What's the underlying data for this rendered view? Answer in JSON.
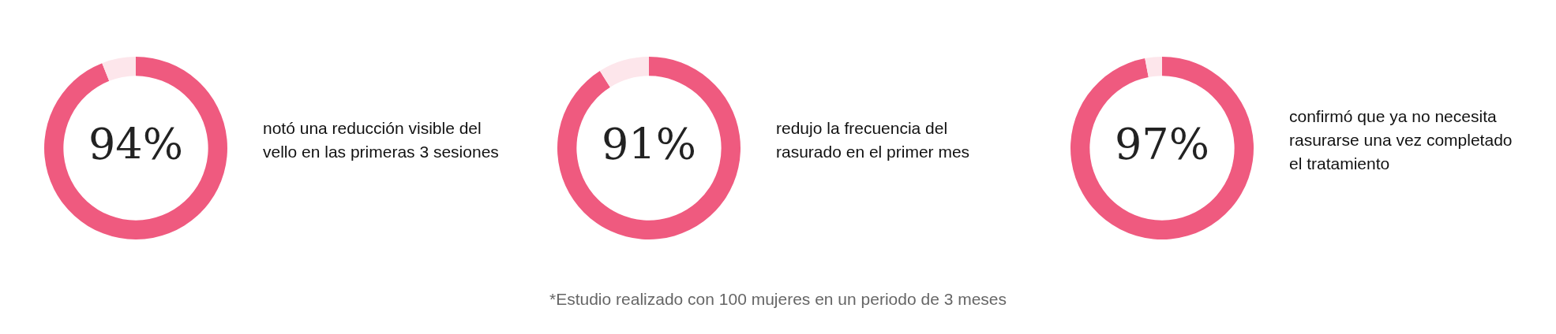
{
  "chart_data": [
    {
      "type": "donut",
      "categories": [
        null,
        null
      ],
      "values": [
        94,
        6
      ],
      "colors": [
        "#ef5a7f",
        "#fde6eb"
      ],
      "value_labels": [
        "94%",
        null
      ],
      "annotations": [
        "notó una reducción visible del vello en las primeras 3 sesiones"
      ]
    },
    {
      "type": "donut",
      "categories": [
        null,
        null
      ],
      "values": [
        91,
        9
      ],
      "colors": [
        "#ef5a7f",
        "#fde6eb"
      ],
      "value_labels": [
        "91%",
        null
      ],
      "annotations": [
        "redujo la frecuencia del rasurado en el primer mes"
      ]
    },
    {
      "type": "donut",
      "categories": [
        null,
        null
      ],
      "values": [
        97,
        3
      ],
      "colors": [
        "#ef5a7f",
        "#fde6eb"
      ],
      "value_labels": [
        "97%",
        null
      ],
      "annotations": [
        "confirmó que ya no necesita rasurarse una vez completado el tratamiento"
      ]
    },
    {
      "type": "other",
      "annotations": [
        "*Estudio realizado con 100 mujeres en un periodo de 3 meses"
      ]
    }
  ]
}
